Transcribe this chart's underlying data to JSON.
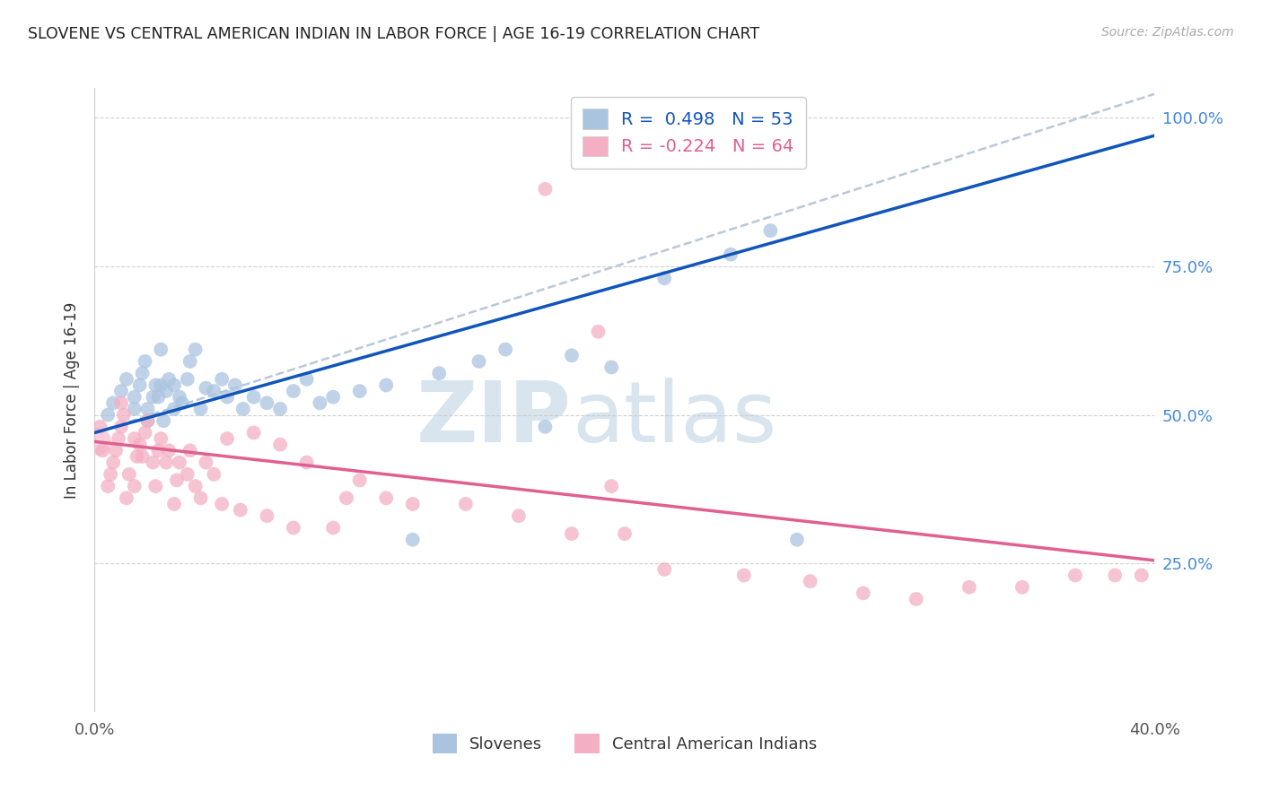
{
  "title": "SLOVENE VS CENTRAL AMERICAN INDIAN IN LABOR FORCE | AGE 16-19 CORRELATION CHART",
  "source": "Source: ZipAtlas.com",
  "ylabel": "In Labor Force | Age 16-19",
  "xlim": [
    0.0,
    0.4
  ],
  "ylim": [
    0.0,
    1.05
  ],
  "blue_R": 0.498,
  "blue_N": 53,
  "pink_R": -0.224,
  "pink_N": 64,
  "blue_color": "#aac4e0",
  "pink_color": "#f4afc5",
  "blue_line_color": "#1155bb",
  "pink_line_color": "#e06090",
  "dashed_line_color": "#b8c8d8",
  "watermark_color": "#d8e4ee",
  "legend_label_blue": "Slovenes",
  "legend_label_pink": "Central American Indians",
  "ytick_vals": [
    0.25,
    0.5,
    0.75,
    1.0
  ],
  "ytick_labels": [
    "25.0%",
    "50.0%",
    "75.0%",
    "100.0%"
  ],
  "blue_trend_x": [
    0.0,
    0.4
  ],
  "blue_trend_y": [
    0.47,
    0.97
  ],
  "pink_trend_x": [
    0.0,
    0.4
  ],
  "pink_trend_y": [
    0.455,
    0.255
  ],
  "dashed_trend_x": [
    0.0,
    0.4
  ],
  "dashed_trend_y": [
    0.47,
    1.04
  ],
  "blue_x": [
    0.005,
    0.007,
    0.01,
    0.012,
    0.015,
    0.015,
    0.017,
    0.018,
    0.019,
    0.02,
    0.02,
    0.022,
    0.023,
    0.024,
    0.025,
    0.025,
    0.026,
    0.027,
    0.028,
    0.03,
    0.03,
    0.032,
    0.033,
    0.035,
    0.036,
    0.038,
    0.04,
    0.042,
    0.045,
    0.048,
    0.05,
    0.053,
    0.056,
    0.06,
    0.065,
    0.07,
    0.075,
    0.08,
    0.085,
    0.09,
    0.1,
    0.11,
    0.12,
    0.13,
    0.145,
    0.155,
    0.17,
    0.18,
    0.195,
    0.215,
    0.24,
    0.255,
    0.265
  ],
  "blue_y": [
    0.5,
    0.52,
    0.54,
    0.56,
    0.51,
    0.53,
    0.55,
    0.57,
    0.59,
    0.49,
    0.51,
    0.53,
    0.55,
    0.53,
    0.55,
    0.61,
    0.49,
    0.54,
    0.56,
    0.51,
    0.55,
    0.53,
    0.52,
    0.56,
    0.59,
    0.61,
    0.51,
    0.545,
    0.54,
    0.56,
    0.53,
    0.55,
    0.51,
    0.53,
    0.52,
    0.51,
    0.54,
    0.56,
    0.52,
    0.53,
    0.54,
    0.55,
    0.29,
    0.57,
    0.59,
    0.61,
    0.48,
    0.6,
    0.58,
    0.73,
    0.77,
    0.81,
    0.29
  ],
  "pink_x": [
    0.002,
    0.003,
    0.005,
    0.006,
    0.007,
    0.008,
    0.009,
    0.01,
    0.01,
    0.011,
    0.012,
    0.013,
    0.015,
    0.015,
    0.016,
    0.017,
    0.018,
    0.019,
    0.02,
    0.022,
    0.023,
    0.024,
    0.025,
    0.027,
    0.028,
    0.03,
    0.031,
    0.032,
    0.035,
    0.036,
    0.038,
    0.04,
    0.042,
    0.045,
    0.048,
    0.05,
    0.055,
    0.06,
    0.065,
    0.07,
    0.075,
    0.08,
    0.09,
    0.095,
    0.1,
    0.11,
    0.12,
    0.14,
    0.16,
    0.18,
    0.195,
    0.2,
    0.215,
    0.245,
    0.27,
    0.29,
    0.31,
    0.33,
    0.35,
    0.37,
    0.385,
    0.395,
    0.19,
    0.17
  ],
  "pink_y": [
    0.48,
    0.44,
    0.38,
    0.4,
    0.42,
    0.44,
    0.46,
    0.48,
    0.52,
    0.5,
    0.36,
    0.4,
    0.38,
    0.46,
    0.43,
    0.45,
    0.43,
    0.47,
    0.49,
    0.42,
    0.38,
    0.44,
    0.46,
    0.42,
    0.44,
    0.35,
    0.39,
    0.42,
    0.4,
    0.44,
    0.38,
    0.36,
    0.42,
    0.4,
    0.35,
    0.46,
    0.34,
    0.47,
    0.33,
    0.45,
    0.31,
    0.42,
    0.31,
    0.36,
    0.39,
    0.36,
    0.35,
    0.35,
    0.33,
    0.3,
    0.38,
    0.3,
    0.24,
    0.23,
    0.22,
    0.2,
    0.19,
    0.21,
    0.21,
    0.23,
    0.23,
    0.23,
    0.64,
    0.88
  ],
  "big_pink_x": [
    0.001
  ],
  "big_pink_y": [
    0.455
  ]
}
